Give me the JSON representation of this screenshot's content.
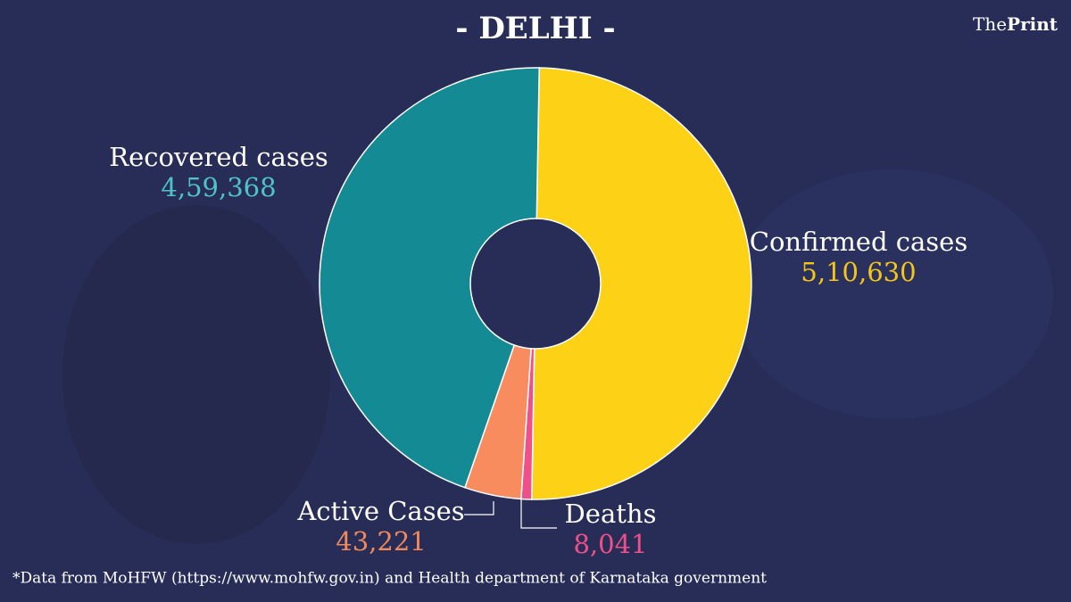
{
  "brand": {
    "prefix": "The",
    "name": "Print"
  },
  "source_note": "*Data from MoHFW (https://www.mohfw.gov.in) and Health department of Karnataka government",
  "chart_data": {
    "type": "pie",
    "donut": true,
    "title": "- DELHI -",
    "categories": [
      "Confirmed cases",
      "Deaths",
      "Active Cases",
      "Recovered cases"
    ],
    "values": [
      510630,
      8041,
      43221,
      459368
    ],
    "value_labels": [
      "5,10,630",
      "8,041",
      "43,221",
      "4,59,368"
    ],
    "colors": [
      "#fcd116",
      "#f0508a",
      "#f98c5f",
      "#138a94"
    ],
    "label_colors": [
      "#f5c518",
      "#f0508a",
      "#f08a5d",
      "#4fc3c8"
    ]
  }
}
